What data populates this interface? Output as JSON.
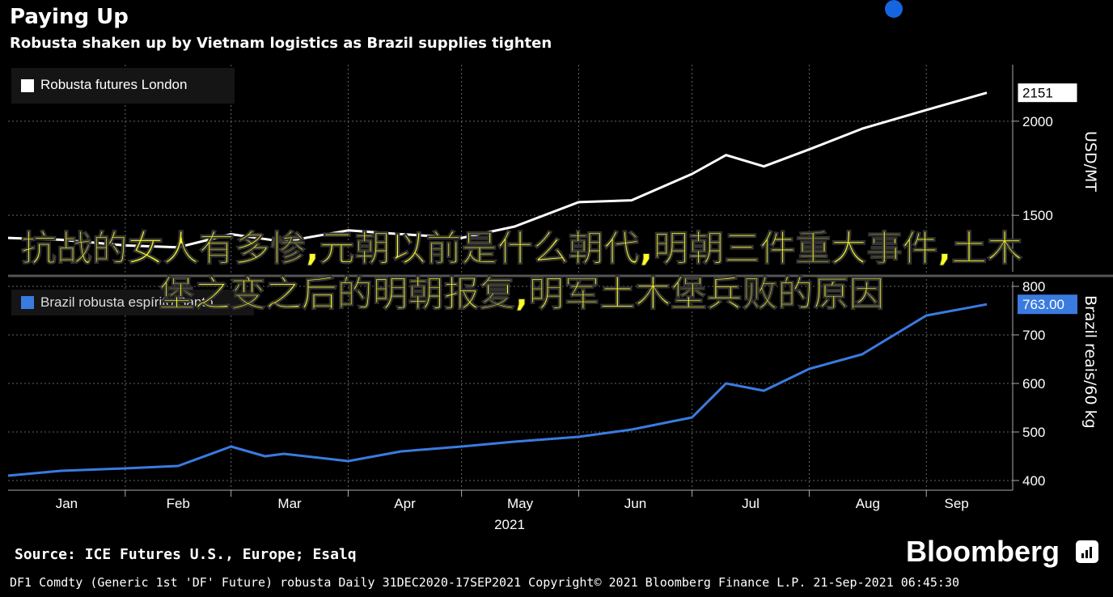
{
  "header": {
    "title": "Paying Up",
    "subtitle": "Robusta shaken up by Vietnam logistics as Brazil supplies tighten"
  },
  "overlay_text": "抗战的女人有多惨,元朝以前是什么朝代,明朝三件重大事件,土木堡之变之后的明朝报复,明军土木堡兵败的原因",
  "footer": {
    "source": "Source: ICE Futures U.S., Europe; Esalq",
    "brand": "Bloomberg",
    "info": "DF1 Comdty (Generic 1st 'DF' Future) robusta  Daily 31DEC2020-17SEP2021  Copyright© 2021 Bloomberg Finance L.P.  21-Sep-2021 06:45:30"
  },
  "colors": {
    "background": "#000000",
    "series1": "#ffffff",
    "series2": "#3a7be0",
    "overlay": "#ffff22",
    "accent_dot": "#1565e0"
  },
  "chart_data": [
    {
      "type": "line",
      "series": [
        {
          "name": "Robusta futures London",
          "x": [
            "2021-01-01",
            "2021-01-15",
            "2021-02-01",
            "2021-02-15",
            "2021-03-01",
            "2021-03-15",
            "2021-04-01",
            "2021-04-15",
            "2021-05-01",
            "2021-05-15",
            "2021-06-01",
            "2021-06-15",
            "2021-07-01",
            "2021-07-10",
            "2021-07-20",
            "2021-08-01",
            "2021-08-15",
            "2021-09-01",
            "2021-09-17"
          ],
          "y": [
            1380,
            1370,
            1340,
            1330,
            1400,
            1360,
            1420,
            1400,
            1380,
            1440,
            1570,
            1580,
            1720,
            1820,
            1760,
            1850,
            1960,
            2060,
            2151
          ]
        }
      ],
      "unit": "USD/MT",
      "ylim": [
        1200,
        2300
      ],
      "yticks": [
        1500,
        2000
      ],
      "last_value_label": "2151",
      "legend": "top-left",
      "grid": true
    },
    {
      "type": "line",
      "series": [
        {
          "name": "Brazil robusta espírito Santo",
          "x": [
            "2021-01-01",
            "2021-01-15",
            "2021-02-01",
            "2021-02-15",
            "2021-03-01",
            "2021-03-10",
            "2021-03-15",
            "2021-04-01",
            "2021-04-15",
            "2021-05-01",
            "2021-05-15",
            "2021-06-01",
            "2021-06-15",
            "2021-07-01",
            "2021-07-10",
            "2021-07-20",
            "2021-08-01",
            "2021-08-15",
            "2021-09-01",
            "2021-09-17"
          ],
          "y": [
            410,
            420,
            425,
            430,
            470,
            450,
            455,
            440,
            460,
            470,
            480,
            490,
            505,
            530,
            600,
            585,
            630,
            660,
            740,
            763
          ]
        }
      ],
      "unit": "Brazil reais/60 kg",
      "ylim": [
        380,
        810
      ],
      "yticks": [
        400,
        500,
        600,
        700,
        800
      ],
      "last_value_label": "763.00",
      "legend": "top-left",
      "grid": true
    }
  ],
  "x_axis": {
    "ticks": [
      "Jan",
      "Feb",
      "Mar",
      "Apr",
      "May",
      "Jun",
      "Jul",
      "Aug",
      "Sep"
    ],
    "year_label": "2021"
  }
}
